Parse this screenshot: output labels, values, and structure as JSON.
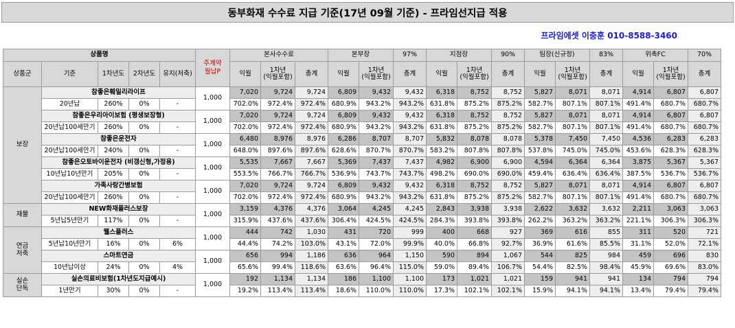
{
  "title": "동부화재 수수료 지급 기준(17년 09월 기준) - 프라임선지급 적용",
  "contact": "프라임에셋 이충훈 010-8588-3460",
  "header": {
    "product_name": "상품명",
    "contract_monthly": "주계약\n월납P",
    "groups": [
      {
        "name": "본사수수료",
        "pct": ""
      },
      {
        "name": "본부장",
        "pct": "97%"
      },
      {
        "name": "지점장",
        "pct": "90%"
      },
      {
        "name": "팀장(신규정)",
        "pct": "83%"
      },
      {
        "name": "위촉FC",
        "pct": "70%"
      }
    ],
    "sub_left": [
      "상품군",
      "기준",
      "1차년도",
      "2차년도",
      "유지(저축)"
    ],
    "sub_cols": [
      "익월",
      "1차년\n(익월포함)",
      "총계"
    ]
  },
  "sections": [
    {
      "category": "보장",
      "products": [
        {
          "name": "참좋은훼밀리라이프",
          "basis": "20년납",
          "y1": "260%",
          "y2": "0%",
          "keep": "-",
          "premium": "1,000",
          "amounts": [
            "7,020",
            "9,724",
            "9,724",
            "6,809",
            "9,432",
            "9,432",
            "6,318",
            "8,752",
            "8,752",
            "5,827",
            "8,071",
            "8,071",
            "4,914",
            "6,807",
            "6,807"
          ],
          "rates": [
            "702.0%",
            "972.4%",
            "972.4%",
            "680.9%",
            "943.2%",
            "943.2%",
            "631.8%",
            "875.2%",
            "875.2%",
            "582.7%",
            "807.1%",
            "807.1%",
            "491.4%",
            "680.7%",
            "680.7%"
          ]
        },
        {
          "name": "참좋은우리아이보험 (평생보장형)",
          "basis": "20년납100세만기",
          "y1": "260%",
          "y2": "0%",
          "keep": "-",
          "premium": "1,000",
          "amounts": [
            "7,020",
            "9,724",
            "9,724",
            "6,809",
            "9,432",
            "9,432",
            "6,318",
            "8,752",
            "8,752",
            "5,827",
            "8,071",
            "8,071",
            "4,914",
            "6,807",
            "6,807"
          ],
          "rates": [
            "702.0%",
            "972.4%",
            "972.4%",
            "680.9%",
            "943.2%",
            "943.2%",
            "631.8%",
            "875.2%",
            "875.2%",
            "582.7%",
            "807.1%",
            "807.1%",
            "491.4%",
            "680.7%",
            "680.7%"
          ]
        },
        {
          "name": "참좋은운전자",
          "basis": "20년납100세만기",
          "y1": "240%",
          "y2": "0%",
          "keep": "-",
          "premium": "1,000",
          "amounts": [
            "6,480",
            "8,976",
            "8,976",
            "6,286",
            "8,707",
            "8,707",
            "5,832",
            "8,078",
            "8,078",
            "5,378",
            "7,450",
            "7,450",
            "4,536",
            "6,283",
            "6,283"
          ],
          "rates": [
            "648.0%",
            "897.6%",
            "897.6%",
            "628.6%",
            "870.7%",
            "870.7%",
            "583.2%",
            "807.8%",
            "807.8%",
            "537.8%",
            "745.0%",
            "745.0%",
            "453.6%",
            "628.3%",
            "628.3%"
          ]
        },
        {
          "name": "참좋은오토바이운전자 (비갱신형,가정용)",
          "basis": "10년납10년만기",
          "y1": "205%",
          "y2": "0%",
          "keep": "-",
          "premium": "1,000",
          "amounts": [
            "5,535",
            "7,667",
            "7,667",
            "5,369",
            "7,437",
            "7,437",
            "4,982",
            "6,900",
            "6,900",
            "4,594",
            "6,364",
            "6,364",
            "3,875",
            "5,367",
            "5,367"
          ],
          "rates": [
            "553.5%",
            "766.7%",
            "766.7%",
            "536.9%",
            "743.7%",
            "743.7%",
            "498.2%",
            "690.0%",
            "690.0%",
            "459.4%",
            "636.4%",
            "636.4%",
            "387.5%",
            "536.7%",
            "536.7%"
          ]
        },
        {
          "name": "가족사랑간병보험",
          "basis": "20년납100세만기",
          "y1": "260%",
          "y2": "0%",
          "keep": "-",
          "premium": "1,000",
          "amounts": [
            "7,020",
            "9,724",
            "9,724",
            "6,809",
            "9,432",
            "9,432",
            "6,318",
            "8,752",
            "8,752",
            "5,827",
            "8,071",
            "8,071",
            "4,914",
            "6,807",
            "6,807"
          ],
          "rates": [
            "702.0%",
            "972.4%",
            "972.4%",
            "680.9%",
            "943.2%",
            "943.2%",
            "631.8%",
            "875.2%",
            "875.2%",
            "582.7%",
            "807.1%",
            "807.1%",
            "491.4%",
            "680.7%",
            "680.7%"
          ]
        }
      ]
    },
    {
      "category": "재물",
      "products": [
        {
          "name": "NEW화재플러스보장",
          "basis": "5년납5년만기",
          "y1": "117%",
          "y2": "0%",
          "keep": "-",
          "premium": "1,000",
          "amounts": [
            "3,159",
            "4,376",
            "4,376",
            "3,064",
            "4,245",
            "4,245",
            "2,843",
            "3,938",
            "3,938",
            "2,622",
            "3,632",
            "3,632",
            "2,211",
            "3,063",
            "3,063"
          ],
          "rates": [
            "315.9%",
            "437.6%",
            "437.6%",
            "306.4%",
            "424.5%",
            "424.5%",
            "284.3%",
            "393.8%",
            "393.8%",
            "262.2%",
            "363.2%",
            "363.2%",
            "221.1%",
            "306.3%",
            "306.3%"
          ]
        }
      ]
    },
    {
      "category": "연금\n저축",
      "products": [
        {
          "name": "웰스플러스",
          "basis": "5년납10년만기",
          "y1": "16%",
          "y2": "0%",
          "keep": "6%",
          "premium": "1,000",
          "amounts": [
            "444",
            "742",
            "1,030",
            "431",
            "720",
            "999",
            "400",
            "668",
            "927",
            "369",
            "616",
            "855",
            "311",
            "520",
            "721"
          ],
          "rates": [
            "44.4%",
            "74.2%",
            "103.0%",
            "43.1%",
            "72.0%",
            "99.9%",
            "40.0%",
            "66.8%",
            "92.7%",
            "36.9%",
            "61.6%",
            "85.5%",
            "31.1%",
            "52.0%",
            "72.1%"
          ]
        },
        {
          "name": "스마트연금",
          "basis": "10년납이상",
          "y1": "24%",
          "y2": "0%",
          "keep": "4%",
          "premium": "1,000",
          "amounts": [
            "656",
            "994",
            "1,186",
            "636",
            "964",
            "1,150",
            "590",
            "894",
            "1,067",
            "544",
            "825",
            "984",
            "459",
            "696",
            "830"
          ],
          "rates": [
            "65.6%",
            "99.4%",
            "118.6%",
            "63.6%",
            "96.4%",
            "115.0%",
            "59.0%",
            "89.4%",
            "106.7%",
            "54.4%",
            "82.5%",
            "98.4%",
            "45.9%",
            "69.6%",
            "83.0%"
          ]
        }
      ]
    },
    {
      "category": "실손\n단독",
      "products": [
        {
          "name": "실손의료비보험(1차년도지급예시)",
          "basis": "1년만기",
          "y1": "30%",
          "y2": "0%",
          "keep": "-",
          "premium": "1,000",
          "amounts": [
            "192",
            "1,134",
            "1,134",
            "186",
            "1,100",
            "1,100",
            "173",
            "1,021",
            "1,021",
            "159",
            "941",
            "941",
            "134",
            "794",
            "794"
          ],
          "rates": [
            "19.2%",
            "113.4%",
            "113.4%",
            "18.6%",
            "110.0%",
            "110.0%",
            "17.3%",
            "102.1%",
            "102.1%",
            "15.9%",
            "94.1%",
            "94.1%",
            "13.4%",
            "79.4%",
            "79.4%"
          ]
        }
      ]
    }
  ]
}
